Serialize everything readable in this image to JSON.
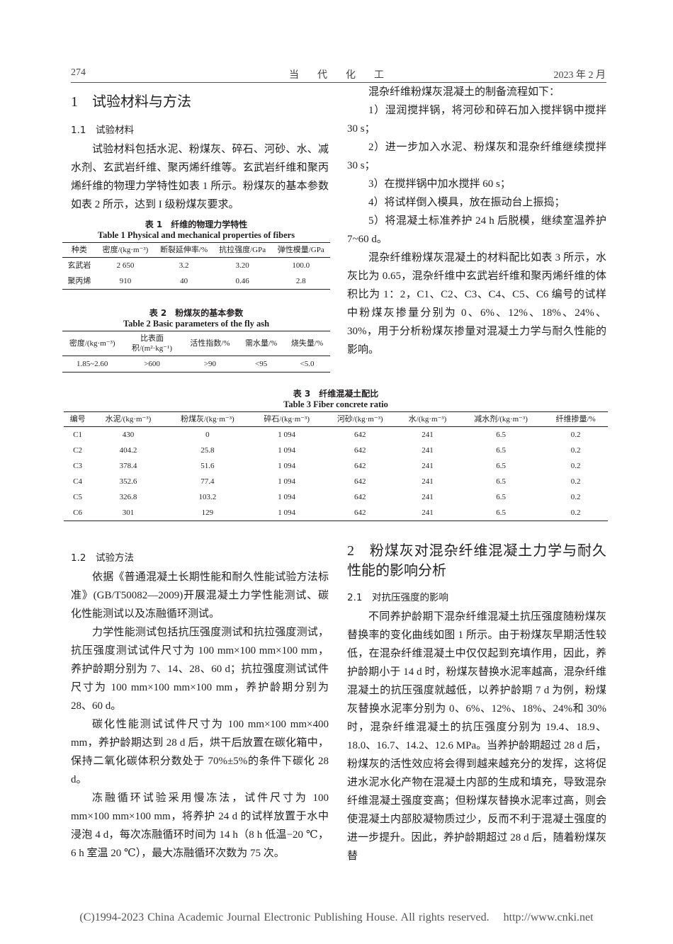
{
  "header": {
    "page": "274",
    "journal": "当　代　化　工",
    "date": "2023 年 2 月"
  },
  "left_top": {
    "section": "1　试验材料与方法",
    "subsection": "1.1　试验材料",
    "paragraphs": [
      "试验材料包括水泥、粉煤灰、碎石、河砂、水、减水剂、玄武岩纤维、聚丙烯纤维等。玄武岩纤维和聚丙烯纤维的物理力学特性如表 1 所示。粉煤灰的基本参数如表 2 所示，达到 I 级粉煤灰要求。"
    ]
  },
  "table1": {
    "title_cn": "表 1　纤维的物理力学特性",
    "title_en": "Table 1 Physical and mechanical properties of fibers",
    "header": [
      "种类",
      "密度/(kg·m⁻³)",
      "断裂延伸率/%",
      "抗拉强度/GPa",
      "弹性模量/GPa"
    ],
    "rows": [
      [
        "玄武岩",
        "2 650",
        "3.2",
        "3.20",
        "100.0"
      ],
      [
        "聚丙烯",
        "910",
        "40",
        "0.46",
        "2.8"
      ]
    ]
  },
  "table2": {
    "title_cn": "表 2　粉煤灰的基本参数",
    "title_en": "Table 2 Basic parameters of the fly ash",
    "header": [
      "密度/(kg·m⁻³)",
      "比表面积/(m²·kg⁻¹)",
      "活性指数/%",
      "需水量/%",
      "烧失量/%"
    ],
    "rows": [
      [
        "1.85~2.60",
        ">600",
        ">90",
        "<95",
        "<5.0"
      ]
    ]
  },
  "right_top": {
    "paragraphs": [
      "混杂纤维粉煤灰混凝土的制备流程如下：",
      "1）湿润搅拌锅，将河砂和碎石加入搅拌锅中搅拌 30 s；",
      "2）进一步加入水泥、粉煤灰和混杂纤维继续搅拌 30 s；",
      "3）在搅拌锅中加水搅拌 60 s；",
      "4）将试样倒入模具，放在振动台上振捣；",
      "5）将混凝土标准养护 24 h 后脱模，继续室温养护 7~60 d。",
      "混杂纤维粉煤灰混凝土的材料配比如表 3 所示，水灰比为 0.65，混杂纤维中玄武岩纤维和聚丙烯纤维的体积比为 1：2，C1、C2、C3、C4、C5、C6 编号的试样中粉煤灰掺量分别为 0、6%、12%、18%、24%、30%，用于分析粉煤灰掺量对混凝土力学与耐久性能的影响。"
    ]
  },
  "table3": {
    "title_cn": "表 3　纤维混凝土配比",
    "title_en": "Table 3 Fiber concrete ratio",
    "header": [
      "编号",
      "水泥/(kg·m⁻³)",
      "粉煤灰/(kg·m⁻³)",
      "碎石/(kg·m⁻³)",
      "河砂/(kg·m⁻³)",
      "水/(kg·m⁻³)",
      "减水剂/(kg·m⁻³)",
      "纤维掺量/%"
    ],
    "rows": [
      [
        "C1",
        "430",
        "0",
        "1 094",
        "642",
        "241",
        "6.5",
        "0.2"
      ],
      [
        "C2",
        "404.2",
        "25.8",
        "1 094",
        "642",
        "241",
        "6.5",
        "0.2"
      ],
      [
        "C3",
        "378.4",
        "51.6",
        "1 094",
        "642",
        "241",
        "6.5",
        "0.2"
      ],
      [
        "C4",
        "352.6",
        "77.4",
        "1 094",
        "642",
        "241",
        "6.5",
        "0.2"
      ],
      [
        "C5",
        "326.8",
        "103.2",
        "1 094",
        "642",
        "241",
        "6.5",
        "0.2"
      ],
      [
        "C6",
        "301",
        "129",
        "1 094",
        "642",
        "241",
        "6.5",
        "0.2"
      ]
    ]
  },
  "left_bottom": {
    "subsection": "1.2　试验方法",
    "paragraphs": [
      "依据《普通混凝土长期性能和耐久性能试验方法标准》(GB/T50082—2009)开展混凝土力学性能测试、碳化性能测试以及冻融循环测试。",
      "力学性能测试包括抗压强度测试和抗拉强度测试，抗压强度测试试件尺寸为 100 mm×100 mm×100 mm，养护龄期分别为 7、14、28、60 d；抗拉强度测试试件尺寸为 100 mm×100 mm×100 mm，养护龄期分别为 28、60 d。",
      "碳化性能测试试件尺寸为 100 mm×100 mm×400 mm，养护龄期达到 28 d 后，烘干后放置在碳化箱中，保持二氧化碳体积分数处于 70%±5%的条件下碳化 28 d。",
      "冻融循环试验采用慢冻法，试件尺寸为 100 mm×100 mm×100 mm，将养护 24 d 的试样放置于水中浸泡 4 d，每次冻融循环时间为 14 h（8 h 低温−20 ℃，6 h 室温 20 ℃），最大冻融循环次数为 75 次。"
    ]
  },
  "right_bottom": {
    "section": "2　粉煤灰对混杂纤维混凝土力学与耐久性能的影响分析",
    "subsection": "2.1　对抗压强度的影响",
    "paragraphs": [
      "不同养护龄期下混杂纤维混凝土抗压强度随粉煤灰替换率的变化曲线如图 1 所示。由于粉煤灰早期活性较低，在混杂纤维混凝土中仅仅起到充填作用，因此，养护龄期小于 14 d 时，粉煤灰替换水泥率越高，混杂纤维混凝土的抗压强度就越低，以养护龄期 7 d 为例，粉煤灰替换水泥率分别为 0、6%、12%、18%、24%和 30%时，混杂纤维混凝土的抗压强度分别为 19.4、18.9、18.0、16.7、14.2、12.6 MPa。当养护龄期超过 28 d 后，粉煤灰的活性效应将会得到越来越充分的发挥，这将促进水泥水化产物在混凝土内部的生成和填充，导致混杂纤维混凝土强度变高；但粉煤灰替换水泥率过高，则会使混凝土内部胶凝物质过少，反而不利于混凝土强度的进一步提升。因此，养护龄期超过 28 d 后，随着粉煤灰替"
    ]
  },
  "footer": {
    "copyright": "(C)1994-2023 China Academic Journal Electronic Publishing House. All rights reserved.",
    "url": "http://www.cnki.net"
  }
}
